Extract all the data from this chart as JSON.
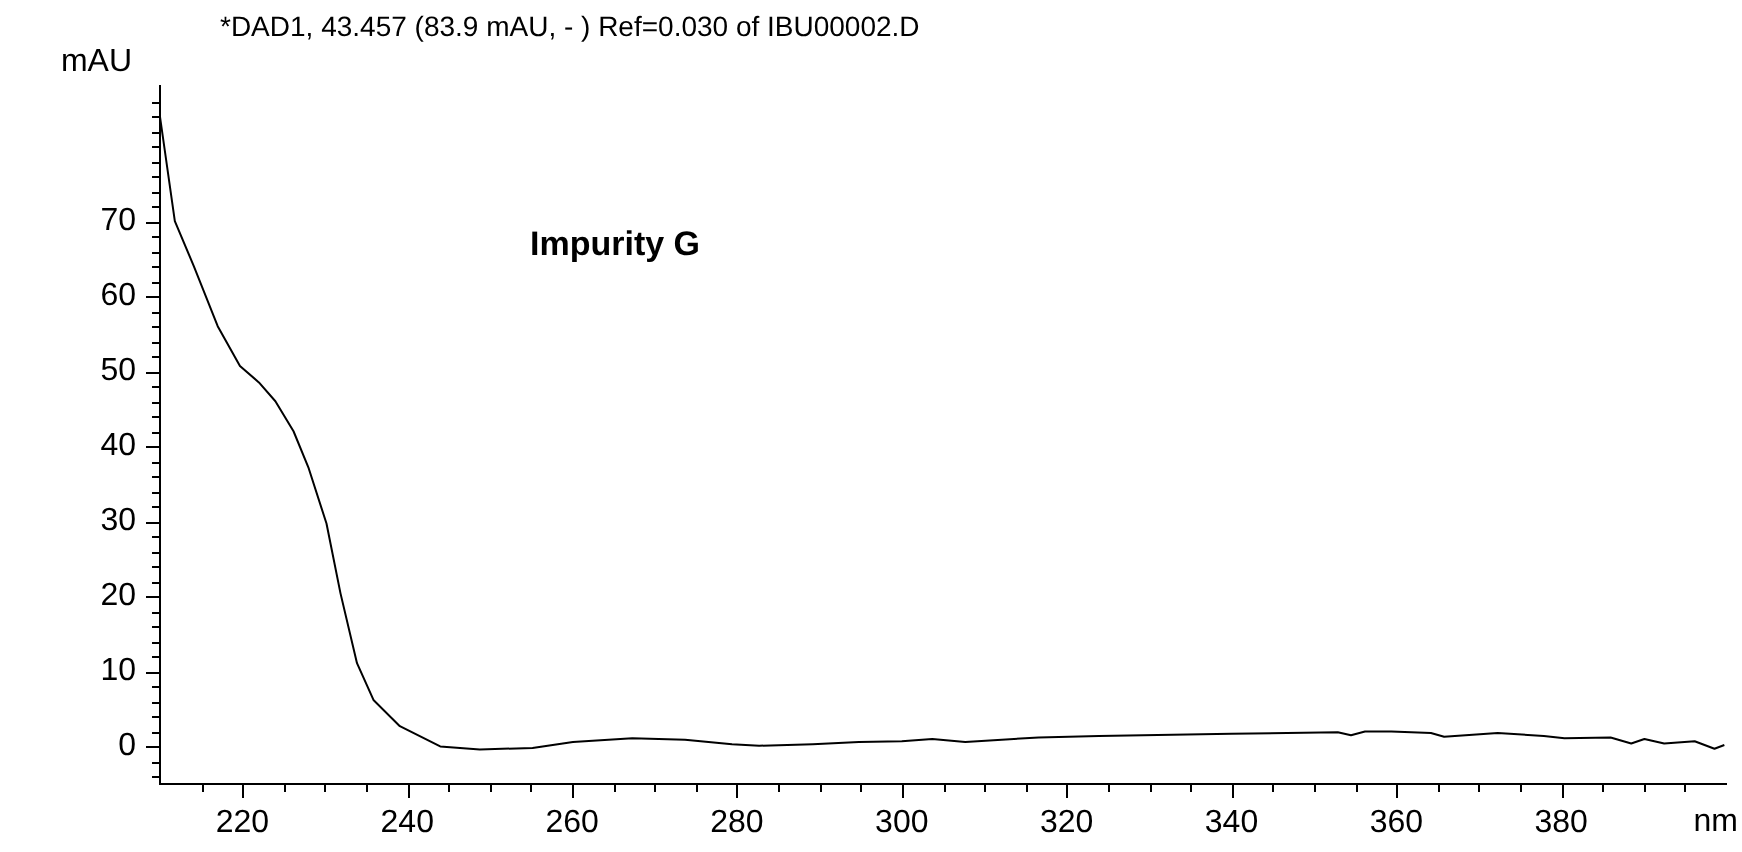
{
  "chart_data": {
    "type": "line",
    "title": "*DAD1, 43.457 (83.9 mAU, - ) Ref=0.030 of IBU00002.D",
    "xlabel": "nm",
    "ylabel": "mAU",
    "annotations": [
      "Impurity G"
    ],
    "xlim": [
      210,
      400
    ],
    "ylim": [
      -5,
      88
    ],
    "xticks": [
      {
        "value": 215,
        "label": null
      },
      220,
      {
        "value": 225,
        "label": null
      },
      {
        "value": 230,
        "label": null
      },
      {
        "value": 235,
        "label": null
      },
      240,
      {
        "value": 245,
        "label": null
      },
      {
        "value": 250,
        "label": null
      },
      {
        "value": 255,
        "label": null
      },
      260,
      {
        "value": 265,
        "label": null
      },
      {
        "value": 270,
        "label": null
      },
      {
        "value": 275,
        "label": null
      },
      280,
      {
        "value": 285,
        "label": null
      },
      {
        "value": 290,
        "label": null
      },
      {
        "value": 295,
        "label": null
      },
      300,
      {
        "value": 305,
        "label": null
      },
      {
        "value": 310,
        "label": null
      },
      {
        "value": 315,
        "label": null
      },
      320,
      {
        "value": 325,
        "label": null
      },
      {
        "value": 330,
        "label": null
      },
      {
        "value": 335,
        "label": null
      },
      340,
      {
        "value": 345,
        "label": null
      },
      {
        "value": 350,
        "label": null
      },
      {
        "value": 355,
        "label": null
      },
      360,
      {
        "value": 365,
        "label": null
      },
      {
        "value": 370,
        "label": null
      },
      {
        "value": 375,
        "label": null
      },
      380,
      {
        "value": 385,
        "label": null
      },
      {
        "value": 390,
        "label": null
      },
      {
        "value": 395,
        "label": null
      }
    ],
    "yticks": [
      {
        "value": -4,
        "label": null
      },
      {
        "value": -2,
        "label": null
      },
      0,
      {
        "value": 2,
        "label": null
      },
      {
        "value": 4,
        "label": null
      },
      {
        "value": 6,
        "label": null
      },
      {
        "value": 8,
        "label": null
      },
      10,
      {
        "value": 12,
        "label": null
      },
      {
        "value": 14,
        "label": null
      },
      {
        "value": 16,
        "label": null
      },
      {
        "value": 18,
        "label": null
      },
      20,
      {
        "value": 22,
        "label": null
      },
      {
        "value": 24,
        "label": null
      },
      {
        "value": 26,
        "label": null
      },
      {
        "value": 28,
        "label": null
      },
      30,
      {
        "value": 32,
        "label": null
      },
      {
        "value": 34,
        "label": null
      },
      {
        "value": 36,
        "label": null
      },
      {
        "value": 38,
        "label": null
      },
      40,
      {
        "value": 42,
        "label": null
      },
      {
        "value": 44,
        "label": null
      },
      {
        "value": 46,
        "label": null
      },
      {
        "value": 48,
        "label": null
      },
      50,
      {
        "value": 52,
        "label": null
      },
      {
        "value": 54,
        "label": null
      },
      {
        "value": 56,
        "label": null
      },
      {
        "value": 58,
        "label": null
      },
      60,
      {
        "value": 62,
        "label": null
      },
      {
        "value": 64,
        "label": null
      },
      {
        "value": 66,
        "label": null
      },
      {
        "value": 68,
        "label": null
      },
      70,
      {
        "value": 72,
        "label": null
      },
      {
        "value": 74,
        "label": null
      },
      {
        "value": 76,
        "label": null
      },
      {
        "value": 78,
        "label": null
      },
      {
        "value": 80,
        "label": null
      },
      {
        "value": 82,
        "label": null
      },
      {
        "value": 84,
        "label": null
      },
      {
        "value": 86,
        "label": null
      }
    ],
    "grid": false,
    "legend": false,
    "marker": "none",
    "line_style": "solid",
    "x": [
      210,
      211.8,
      214.1,
      217,
      219.7,
      222,
      224,
      226.2,
      228,
      230.2,
      231.9,
      233.9,
      235.9,
      239.1,
      244,
      248.8,
      255.2,
      260.1,
      267.3,
      273.7,
      279.4,
      282.7,
      289.2,
      294.8,
      300,
      303.7,
      307.7,
      316.6,
      323.9,
      340,
      352.9,
      354.5,
      356.2,
      359.4,
      364.2,
      365.8,
      372.3,
      377.9,
      380.4,
      386,
      388.5,
      390.1,
      392.5,
      396.2,
      398.6,
      399.8
    ],
    "series": [
      {
        "color": "#000000",
        "values": [
          83.9,
          70,
          64,
          56,
          50.7,
          48.5,
          46,
          42,
          37.2,
          29.7,
          20.4,
          11.1,
          6.2,
          2.7,
          0,
          -0.4,
          -0.2,
          0.6,
          1.1,
          0.9,
          0.3,
          0.1,
          0.3,
          0.6,
          0.7,
          1.0,
          0.6,
          1.2,
          1.4,
          1.7,
          1.9,
          1.5,
          2.0,
          2.0,
          1.8,
          1.3,
          1.8,
          1.4,
          1.1,
          1.2,
          0.4,
          1.0,
          0.4,
          0.7,
          -0.3,
          0.2
        ]
      }
    ]
  }
}
